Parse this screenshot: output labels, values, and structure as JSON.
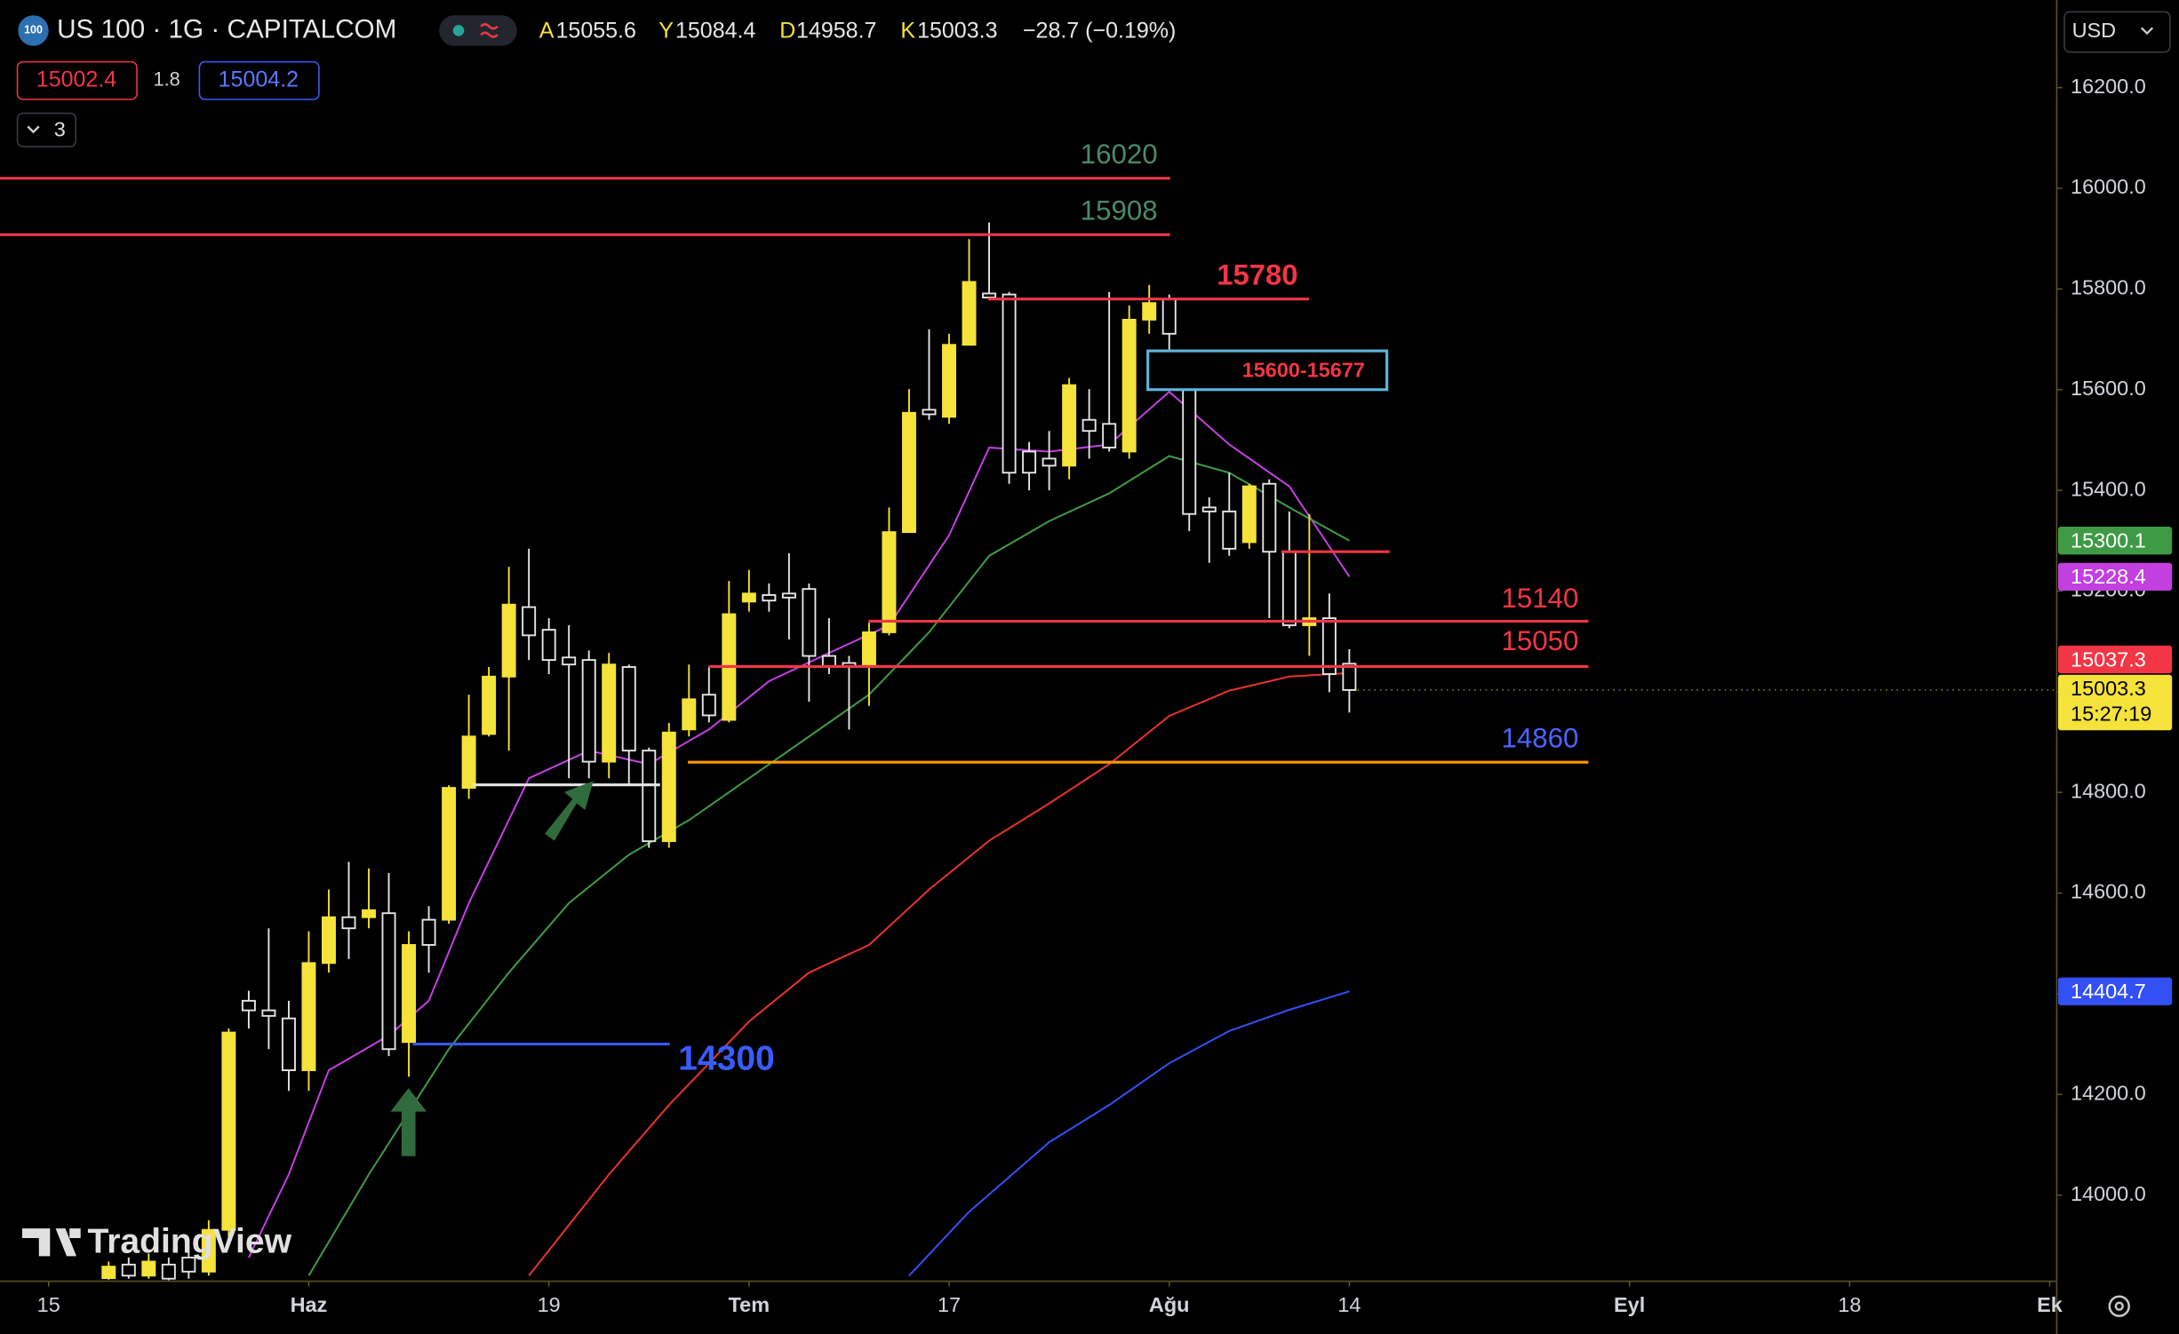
{
  "header": {
    "logo": "100",
    "symbol": "US 100 · 1G · CAPITALCOM",
    "ohlc_letters": [
      "A",
      "Y",
      "D",
      "K"
    ],
    "change": "−28.7 (−0.19%)",
    "sell": 15002.4,
    "spread": 1.8,
    "buy": 15004.2,
    "indicator_count": 3,
    "currency": "USD",
    "countdown": "15:27:19",
    "watermark": "TradingView"
  },
  "chart_data": {
    "type": "candlestick",
    "up_color": "#f5e23a",
    "down_color": "#e6e6e6",
    "open": [
      13835,
      13862,
      13840,
      13862,
      13876,
      13848,
      13931,
      14386,
      14367,
      14351,
      14248,
      14461,
      14552,
      14552,
      14560,
      14304,
      14547,
      14547,
      14809,
      14916,
      15030,
      15168,
      15123,
      15068,
      15063,
      14861,
      15049,
      14883,
      14703,
      14925,
      14994,
      14944,
      15179,
      15192,
      15195,
      15204,
      15071,
      15057,
      15049,
      15118,
      15317,
      15560,
      15546,
      15689,
      15791,
      15789,
      15477,
      15463,
      15449,
      15540,
      15532,
      15477,
      15739,
      15780,
      15601,
      15366,
      15358,
      15297,
      15413,
      15278,
      15132,
      15146,
      15055.6
    ],
    "high": [
      13868,
      13876,
      13884,
      13876,
      13890,
      13950,
      14331,
      14406,
      14530,
      14386,
      14524,
      14607,
      14662,
      14649,
      14640,
      14524,
      14574,
      14814,
      14994,
      15049,
      15248,
      15284,
      15146,
      15132,
      15082,
      15077,
      15054,
      14889,
      14938,
      15054,
      15049,
      15220,
      15242,
      15215,
      15275,
      15215,
      15146,
      15071,
      15137,
      15366,
      15601,
      15720,
      15711,
      15899,
      15932,
      15794,
      15496,
      15518,
      15623,
      15601,
      15794,
      15767,
      15808,
      15789,
      15656,
      15386,
      15435,
      15413,
      15422,
      15358,
      15353,
      15195,
      15084.4
    ],
    "low": [
      13832,
      13834,
      13834,
      13831,
      13834,
      13840,
      13917,
      14331,
      14290,
      14207,
      14207,
      14442,
      14469,
      14530,
      14276,
      14235,
      14442,
      14539,
      14787,
      14911,
      14883,
      15063,
      15035,
      14828,
      14828,
      14828,
      14814,
      14690,
      14690,
      14911,
      14939,
      14939,
      15159,
      15159,
      15104,
      14980,
      15035,
      14925,
      14972,
      15112,
      15317,
      15540,
      15532,
      15689,
      15780,
      15413,
      15400,
      15400,
      15422,
      15463,
      15477,
      15463,
      15711,
      15634,
      15319,
      15256,
      15270,
      15284,
      15146,
      15126,
      15071,
      14999,
      14958.7
    ],
    "close": [
      13858,
      13840,
      13868,
      13834,
      13848,
      13931,
      14323,
      14367,
      14356,
      14248,
      14461,
      14552,
      14530,
      14566,
      14290,
      14497,
      14497,
      14809,
      14911,
      15030,
      15173,
      15112,
      15063,
      15054,
      14861,
      15054,
      14883,
      14703,
      14919,
      14985,
      14953,
      15154,
      15195,
      15181,
      15187,
      15071,
      15049,
      15049,
      15118,
      15317,
      15554,
      15551,
      15689,
      15814,
      15783,
      15435,
      15435,
      15449,
      15609,
      15518,
      15485,
      15739,
      15772,
      15711,
      15353,
      15358,
      15284,
      15408,
      15278,
      15132,
      15146,
      15035,
      15003.3
    ],
    "moving_averages": [
      {
        "color": "#c23fe0",
        "x": [
          7,
          9,
          11,
          14,
          16,
          18,
          21,
          24,
          27,
          30,
          33,
          36,
          39,
          42,
          44,
          47,
          50,
          53,
          56,
          59,
          62
        ],
        "values": [
          13876,
          14041,
          14248,
          14317,
          14386,
          14580,
          14828,
          14883,
          14856,
          14925,
          15021,
          15077,
          15132,
          15311,
          15485,
          15477,
          15491,
          15596,
          15491,
          15408,
          15228.4
        ]
      },
      {
        "color": "#3f9a46",
        "x": [
          10,
          13,
          17,
          20,
          23,
          26,
          29,
          32,
          35,
          38,
          41,
          44,
          47,
          50,
          53,
          56,
          59,
          62
        ],
        "values": [
          13840,
          14041,
          14290,
          14442,
          14580,
          14676,
          14745,
          14828,
          14911,
          14994,
          15118,
          15270,
          15339,
          15394,
          15468,
          15435,
          15366,
          15300.1
        ]
      },
      {
        "color": "#e8322e",
        "x": [
          21,
          25,
          28,
          32,
          35,
          38,
          41,
          44,
          47,
          50,
          53,
          56,
          59,
          62
        ],
        "values": [
          13840,
          14041,
          14179,
          14345,
          14442,
          14497,
          14607,
          14704,
          14778,
          14856,
          14952,
          15002,
          15030,
          15037.3
        ]
      },
      {
        "color": "#3350f5",
        "x": [
          40,
          43,
          47,
          50,
          53,
          56,
          59,
          62
        ],
        "values": [
          13840,
          13967,
          14105,
          14179,
          14262,
          14326,
          14368,
          14404.7
        ]
      }
    ],
    "levels": [
      {
        "value": 16020,
        "label": "16020",
        "color": "#f23645",
        "label_color": "#4a8a68"
      },
      {
        "value": 15908,
        "label": "15908",
        "color": "#f23645",
        "label_color": "#4a8a68"
      },
      {
        "value": 15780,
        "label": "15780",
        "color": "#f23645",
        "label_color": "#f23645"
      },
      {
        "value": 15140,
        "label": "15140",
        "color": "#f23645",
        "label_color": "#f23645"
      },
      {
        "value": 15050,
        "label": "15050",
        "color": "#f23645",
        "label_color": "#f23645"
      },
      {
        "value": 14860,
        "label": "14860",
        "color": "#ff9800",
        "label_color": "#4f63ff"
      },
      {
        "value": 14300,
        "label": "14300",
        "color": "#3a55f0",
        "label_color": "#3a5cff"
      },
      {
        "value": 14815,
        "color": "#e6e6e6"
      },
      {
        "value": 15278,
        "color": "#f23645"
      }
    ],
    "zones": [
      {
        "low": 15600,
        "high": 15677,
        "label": "15600-15677",
        "color": "#5ab6dc",
        "label_color": "#f23645"
      }
    ],
    "xlim": [
      -5.43,
      97.35
    ],
    "ylim": [
      13829,
      16374
    ],
    "xticks": [
      {
        "value": -3,
        "label": "15"
      },
      {
        "value": 10,
        "label": "Haz"
      },
      {
        "value": 22,
        "label": "19"
      },
      {
        "value": 32,
        "label": "Tem"
      },
      {
        "value": 42,
        "label": "17"
      },
      {
        "value": 53,
        "label": "Ağu"
      },
      {
        "value": 62,
        "label": "14"
      },
      {
        "value": 76,
        "label": "Eyl"
      },
      {
        "value": 87,
        "label": "18"
      },
      {
        "value": 97,
        "label": "Ek"
      }
    ],
    "yticks": [
      {
        "value": 14000,
        "label": "14000.0"
      },
      {
        "value": 14200,
        "label": "14200.0"
      },
      {
        "value": 14400,
        "label": "14400.0"
      },
      {
        "value": 14600,
        "label": "14600.0"
      },
      {
        "value": 14800,
        "label": "14800.0"
      },
      {
        "value": 15000,
        "label": "15000.0"
      },
      {
        "value": 15200,
        "label": "15200.0"
      },
      {
        "value": 15400,
        "label": "15400.0"
      },
      {
        "value": 15600,
        "label": "15600.0"
      },
      {
        "value": 15800,
        "label": "15800.0"
      },
      {
        "value": 16000,
        "label": "16000.0"
      },
      {
        "value": 16200,
        "label": "16200.0"
      }
    ]
  }
}
